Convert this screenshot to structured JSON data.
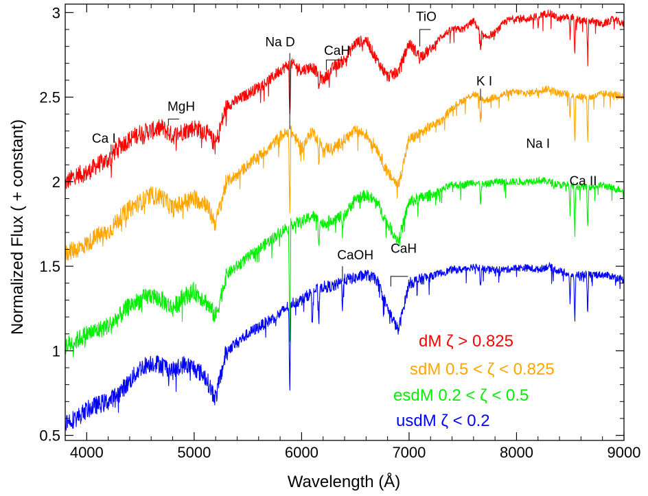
{
  "chart_data": {
    "type": "line",
    "xlabel": "Wavelength (Å)",
    "ylabel": "Normalized Flux ( + constant)",
    "xlim": [
      3800,
      9000
    ],
    "ylim": [
      0.47,
      3.05
    ],
    "xticks": [
      4000,
      5000,
      6000,
      7000,
      8000,
      9000
    ],
    "yticks": [
      0.5,
      1,
      1.5,
      2,
      2.5,
      3
    ],
    "ytick_labels": [
      "0.5",
      "1",
      "1.5",
      "2",
      "2.5",
      "3"
    ],
    "grid": false,
    "series": [
      {
        "name": "dM ζ > 0.825",
        "color": "#ff0000",
        "points": [
          [
            3800,
            1.99
          ],
          [
            3900,
            2.04
          ],
          [
            4000,
            2.05
          ],
          [
            4100,
            2.1
          ],
          [
            4200,
            2.13
          ],
          [
            4300,
            2.21
          ],
          [
            4400,
            2.25
          ],
          [
            4500,
            2.29
          ],
          [
            4600,
            2.3
          ],
          [
            4700,
            2.32
          ],
          [
            4800,
            2.27
          ],
          [
            4900,
            2.3
          ],
          [
            5000,
            2.32
          ],
          [
            5100,
            2.3
          ],
          [
            5200,
            2.22
          ],
          [
            5300,
            2.45
          ],
          [
            5400,
            2.48
          ],
          [
            5500,
            2.52
          ],
          [
            5600,
            2.56
          ],
          [
            5700,
            2.6
          ],
          [
            5800,
            2.66
          ],
          [
            5900,
            2.7
          ],
          [
            6000,
            2.66
          ],
          [
            6100,
            2.68
          ],
          [
            6200,
            2.6
          ],
          [
            6300,
            2.68
          ],
          [
            6400,
            2.72
          ],
          [
            6500,
            2.82
          ],
          [
            6600,
            2.84
          ],
          [
            6700,
            2.72
          ],
          [
            6800,
            2.62
          ],
          [
            6900,
            2.65
          ],
          [
            7000,
            2.82
          ],
          [
            7100,
            2.74
          ],
          [
            7200,
            2.78
          ],
          [
            7300,
            2.86
          ],
          [
            7400,
            2.9
          ],
          [
            7500,
            2.9
          ],
          [
            7600,
            2.95
          ],
          [
            7700,
            2.85
          ],
          [
            7800,
            2.88
          ],
          [
            7900,
            2.95
          ],
          [
            8000,
            2.97
          ],
          [
            8100,
            2.96
          ],
          [
            8200,
            2.98
          ],
          [
            8300,
            3.0
          ],
          [
            8400,
            2.96
          ],
          [
            8500,
            2.98
          ],
          [
            8600,
            2.95
          ],
          [
            8700,
            2.95
          ],
          [
            8800,
            2.93
          ],
          [
            8900,
            2.96
          ],
          [
            9000,
            2.93
          ]
        ],
        "absorption": [
          [
            4227,
            0.1
          ],
          [
            5890,
            0.35
          ],
          [
            6160,
            0.1
          ],
          [
            7665,
            0.12
          ],
          [
            8200,
            0.08
          ],
          [
            8542,
            0.25
          ],
          [
            8662,
            0.22
          ],
          [
            8498,
            0.12
          ]
        ]
      },
      {
        "name": "sdM 0.5 < ζ < 0.825",
        "color": "#ffa500",
        "points": [
          [
            3800,
            1.58
          ],
          [
            3900,
            1.6
          ],
          [
            4000,
            1.63
          ],
          [
            4100,
            1.68
          ],
          [
            4200,
            1.7
          ],
          [
            4300,
            1.78
          ],
          [
            4400,
            1.84
          ],
          [
            4500,
            1.88
          ],
          [
            4600,
            1.92
          ],
          [
            4700,
            1.91
          ],
          [
            4800,
            1.84
          ],
          [
            4900,
            1.88
          ],
          [
            5000,
            1.9
          ],
          [
            5100,
            1.88
          ],
          [
            5200,
            1.75
          ],
          [
            5300,
            2.0
          ],
          [
            5400,
            2.04
          ],
          [
            5500,
            2.1
          ],
          [
            5600,
            2.15
          ],
          [
            5700,
            2.2
          ],
          [
            5800,
            2.27
          ],
          [
            5900,
            2.3
          ],
          [
            6000,
            2.2
          ],
          [
            6100,
            2.3
          ],
          [
            6200,
            2.2
          ],
          [
            6300,
            2.2
          ],
          [
            6400,
            2.25
          ],
          [
            6500,
            2.3
          ],
          [
            6600,
            2.28
          ],
          [
            6700,
            2.2
          ],
          [
            6800,
            2.05
          ],
          [
            6900,
            1.98
          ],
          [
            7000,
            2.25
          ],
          [
            7100,
            2.28
          ],
          [
            7200,
            2.33
          ],
          [
            7300,
            2.36
          ],
          [
            7400,
            2.44
          ],
          [
            7500,
            2.48
          ],
          [
            7600,
            2.52
          ],
          [
            7700,
            2.48
          ],
          [
            7800,
            2.5
          ],
          [
            7900,
            2.52
          ],
          [
            8000,
            2.53
          ],
          [
            8100,
            2.52
          ],
          [
            8200,
            2.54
          ],
          [
            8300,
            2.55
          ],
          [
            8400,
            2.52
          ],
          [
            8500,
            2.52
          ],
          [
            8600,
            2.5
          ],
          [
            8700,
            2.5
          ],
          [
            8800,
            2.52
          ],
          [
            8900,
            2.52
          ],
          [
            9000,
            2.5
          ]
        ],
        "absorption": [
          [
            5890,
            0.55
          ],
          [
            6160,
            0.15
          ],
          [
            7665,
            0.15
          ],
          [
            8542,
            0.3
          ],
          [
            8662,
            0.28
          ],
          [
            8498,
            0.15
          ]
        ]
      },
      {
        "name": "esdM 0.2 < ζ < 0.5",
        "color": "#00ee00",
        "points": [
          [
            3800,
            1.03
          ],
          [
            3900,
            1.06
          ],
          [
            4000,
            1.1
          ],
          [
            4100,
            1.12
          ],
          [
            4200,
            1.15
          ],
          [
            4300,
            1.2
          ],
          [
            4400,
            1.27
          ],
          [
            4500,
            1.3
          ],
          [
            4600,
            1.33
          ],
          [
            4700,
            1.3
          ],
          [
            4800,
            1.25
          ],
          [
            4900,
            1.32
          ],
          [
            5000,
            1.35
          ],
          [
            5100,
            1.3
          ],
          [
            5200,
            1.2
          ],
          [
            5300,
            1.45
          ],
          [
            5400,
            1.5
          ],
          [
            5500,
            1.55
          ],
          [
            5600,
            1.6
          ],
          [
            5700,
            1.65
          ],
          [
            5800,
            1.7
          ],
          [
            5900,
            1.75
          ],
          [
            6000,
            1.76
          ],
          [
            6100,
            1.8
          ],
          [
            6200,
            1.75
          ],
          [
            6300,
            1.78
          ],
          [
            6400,
            1.8
          ],
          [
            6500,
            1.9
          ],
          [
            6600,
            1.92
          ],
          [
            6700,
            1.88
          ],
          [
            6800,
            1.75
          ],
          [
            6900,
            1.65
          ],
          [
            7000,
            1.88
          ],
          [
            7100,
            1.9
          ],
          [
            7200,
            1.92
          ],
          [
            7300,
            1.95
          ],
          [
            7400,
            1.98
          ],
          [
            7500,
            1.98
          ],
          [
            7600,
            2.0
          ],
          [
            7700,
            1.98
          ],
          [
            7800,
            2.0
          ],
          [
            7900,
            2.0
          ],
          [
            8000,
            2.0
          ],
          [
            8100,
            2.0
          ],
          [
            8200,
            2.01
          ],
          [
            8300,
            2.0
          ],
          [
            8400,
            1.98
          ],
          [
            8500,
            1.98
          ],
          [
            8600,
            1.97
          ],
          [
            8700,
            1.97
          ],
          [
            8800,
            1.98
          ],
          [
            8900,
            1.96
          ],
          [
            9000,
            1.95
          ]
        ],
        "absorption": [
          [
            5890,
            0.78
          ],
          [
            6160,
            0.15
          ],
          [
            6380,
            0.12
          ],
          [
            7665,
            0.12
          ],
          [
            8542,
            0.32
          ],
          [
            8662,
            0.26
          ],
          [
            8498,
            0.18
          ]
        ]
      },
      {
        "name": "usdM ζ < 0.2",
        "color": "#0000ff",
        "points": [
          [
            3800,
            0.58
          ],
          [
            3900,
            0.6
          ],
          [
            4000,
            0.65
          ],
          [
            4100,
            0.68
          ],
          [
            4200,
            0.7
          ],
          [
            4300,
            0.75
          ],
          [
            4400,
            0.82
          ],
          [
            4500,
            0.9
          ],
          [
            4600,
            0.93
          ],
          [
            4700,
            0.92
          ],
          [
            4800,
            0.88
          ],
          [
            4900,
            0.92
          ],
          [
            5000,
            0.9
          ],
          [
            5100,
            0.85
          ],
          [
            5200,
            0.72
          ],
          [
            5300,
            1.0
          ],
          [
            5400,
            1.05
          ],
          [
            5500,
            1.1
          ],
          [
            5600,
            1.14
          ],
          [
            5700,
            1.18
          ],
          [
            5800,
            1.22
          ],
          [
            5900,
            1.28
          ],
          [
            6000,
            1.3
          ],
          [
            6100,
            1.35
          ],
          [
            6200,
            1.38
          ],
          [
            6300,
            1.38
          ],
          [
            6400,
            1.42
          ],
          [
            6500,
            1.43
          ],
          [
            6600,
            1.45
          ],
          [
            6700,
            1.42
          ],
          [
            6800,
            1.25
          ],
          [
            6900,
            1.12
          ],
          [
            7000,
            1.4
          ],
          [
            7100,
            1.42
          ],
          [
            7200,
            1.44
          ],
          [
            7300,
            1.46
          ],
          [
            7400,
            1.48
          ],
          [
            7500,
            1.48
          ],
          [
            7600,
            1.5
          ],
          [
            7700,
            1.48
          ],
          [
            7800,
            1.48
          ],
          [
            7900,
            1.48
          ],
          [
            8000,
            1.49
          ],
          [
            8100,
            1.49
          ],
          [
            8200,
            1.48
          ],
          [
            8300,
            1.5
          ],
          [
            8400,
            1.47
          ],
          [
            8500,
            1.45
          ],
          [
            8600,
            1.45
          ],
          [
            8700,
            1.45
          ],
          [
            8800,
            1.45
          ],
          [
            8900,
            1.44
          ],
          [
            9000,
            1.42
          ]
        ],
        "absorption": [
          [
            5890,
            0.55
          ],
          [
            6160,
            0.2
          ],
          [
            6380,
            0.15
          ],
          [
            6100,
            0.18
          ],
          [
            7665,
            0.12
          ],
          [
            8542,
            0.3
          ],
          [
            8662,
            0.25
          ],
          [
            8498,
            0.18
          ]
        ]
      }
    ],
    "annotations": [
      {
        "text": "Ca I",
        "x": 4160,
        "y": 2.23,
        "marker": [
          4227,
          2.16,
          2.22
        ]
      },
      {
        "text": "MgH",
        "x": 4880,
        "y": 2.42,
        "bracket": [
          4760,
          4860,
          2.33,
          2.37
        ]
      },
      {
        "text": "Na D",
        "x": 5800,
        "y": 2.8,
        "marker": [
          5890,
          2.31,
          2.76
        ]
      },
      {
        "text": "CaH",
        "x": 6330,
        "y": 2.75,
        "bracket": [
          6230,
          6380,
          2.66,
          2.72
        ]
      },
      {
        "text": "TiO",
        "x": 7160,
        "y": 2.95,
        "bracket": [
          7100,
          7200,
          2.8,
          2.9
        ]
      },
      {
        "text": "K I",
        "x": 7700,
        "y": 2.57,
        "marker": [
          7665,
          2.48,
          2.55
        ]
      },
      {
        "text": "Na I",
        "x": 8200,
        "y": 2.2,
        "marker": null
      },
      {
        "text": "Ca II",
        "x": 8620,
        "y": 1.98,
        "marker": null
      },
      {
        "text": "CaOH",
        "x": 6500,
        "y": 1.54,
        "marker": [
          6380,
          1.41,
          1.5
        ]
      },
      {
        "text": "CaH",
        "x": 6950,
        "y": 1.58,
        "bracket": [
          6830,
          6990,
          1.38,
          1.44
        ]
      }
    ],
    "legend": [
      {
        "text": "dM ζ > 0.825",
        "color": "#ff0000"
      },
      {
        "text": "sdM 0.5 < ζ < 0.825",
        "color": "#ffa500"
      },
      {
        "text": "esdM 0.2 < ζ < 0.5",
        "color": "#00ee00"
      },
      {
        "text": "usdM ζ < 0.2",
        "color": "#0000ff"
      }
    ]
  }
}
